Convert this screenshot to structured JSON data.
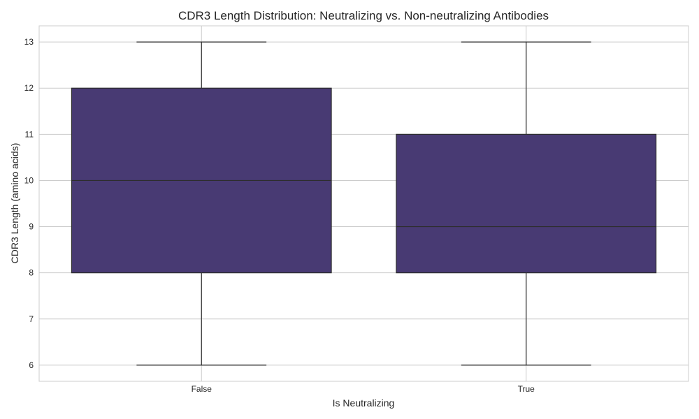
{
  "chart_data": {
    "type": "boxplot",
    "title": "CDR3 Length Distribution: Neutralizing vs. Non-neutralizing Antibodies",
    "xlabel": "Is Neutralizing",
    "ylabel": "CDR3 Length (amino acids)",
    "categories": [
      "False",
      "True"
    ],
    "ylim": [
      5.65,
      13.35
    ],
    "yticks": [
      6,
      7,
      8,
      9,
      10,
      11,
      12,
      13
    ],
    "grid": true,
    "box_color": "#483A73",
    "edge_color": "#2d2d2d",
    "grid_color": "#cccccc",
    "frame_color": "#cccccc",
    "boxes": [
      {
        "category": "False",
        "whisker_low": 6,
        "q1": 8,
        "median": 10,
        "q3": 12,
        "whisker_high": 13
      },
      {
        "category": "True",
        "whisker_low": 6,
        "q1": 8,
        "median": 9,
        "q3": 11,
        "whisker_high": 13
      }
    ]
  }
}
